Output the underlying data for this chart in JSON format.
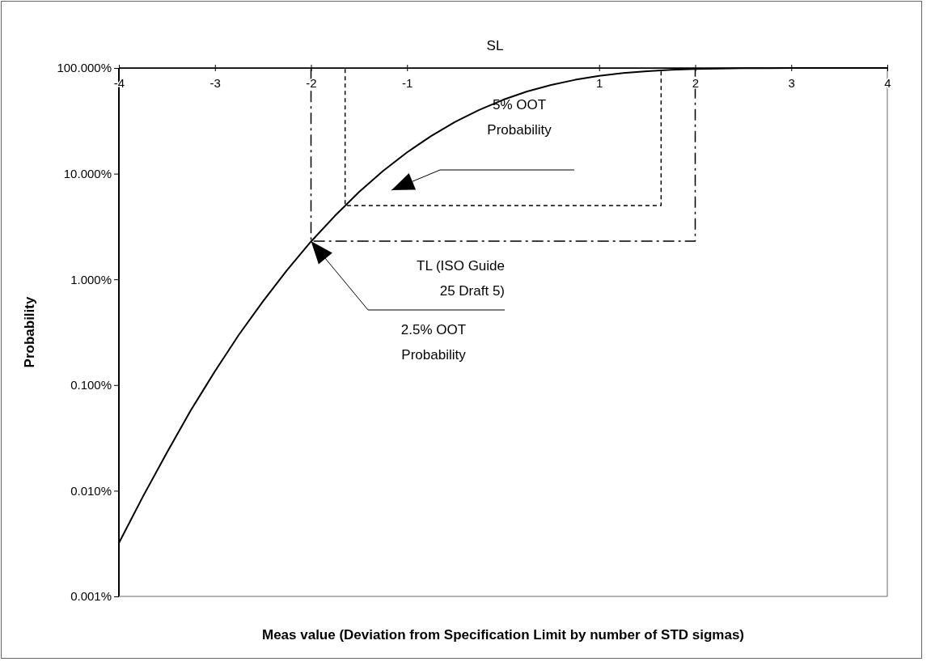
{
  "chart_data": {
    "type": "line",
    "xlabel": "Meas value (Deviation from Specification Limit by number of STD sigmas)",
    "ylabel": "Probability",
    "log": "y",
    "xlim": [
      -4,
      4
    ],
    "xticks": [
      -4,
      -3,
      -2,
      -1,
      1,
      2,
      3,
      4
    ],
    "ylim": [
      0.001,
      100
    ],
    "yticks": [
      {
        "value": 0.001,
        "label": "0.001%"
      },
      {
        "value": 0.01,
        "label": "0.010%"
      },
      {
        "value": 0.1,
        "label": "0.100%"
      },
      {
        "value": 1,
        "label": "1.000%"
      },
      {
        "value": 10,
        "label": "10.000%"
      },
      {
        "value": 100,
        "label": "100.000%"
      }
    ],
    "marker": "none",
    "series": [
      {
        "color": "#000000",
        "line_style": "solid",
        "x": [
          -4,
          -3.75,
          -3.5,
          -3.25,
          -3,
          -2.75,
          -2.5,
          -2.25,
          -2,
          -1.75,
          -1.5,
          -1.25,
          -1,
          -0.75,
          -0.5,
          -0.25,
          0,
          0.25,
          0.5,
          0.75,
          1,
          1.25,
          1.5,
          1.75,
          2,
          2.25,
          2.5,
          2.75,
          3,
          3.25,
          3.5,
          3.75,
          4
        ],
        "values": [
          0.0032,
          0.0088,
          0.023,
          0.058,
          0.135,
          0.3,
          0.62,
          1.22,
          2.28,
          4.0,
          6.7,
          10.6,
          15.9,
          22.7,
          30.9,
          40.1,
          50,
          59.9,
          69.1,
          77.3,
          84.1,
          89.4,
          93.3,
          96,
          97.7,
          98.8,
          99.4,
          99.7,
          99.9,
          99.94,
          99.98,
          100,
          100
        ]
      },
      {
        "color": "#000000",
        "line_style": "dashed",
        "x": [
          -2,
          -2,
          2,
          2
        ],
        "values": [
          98,
          2.3,
          2.3,
          98
        ]
      },
      {
        "color": "#000000",
        "line_style": "dotted",
        "x": [
          -1.645,
          -1.645,
          1.645,
          1.645
        ],
        "values": [
          98,
          5,
          5,
          98
        ]
      }
    ],
    "annotations": [
      "SL",
      "5% OOT Probability",
      {
        "text": "TL (ISO Guide 25 Draft 5)",
        "x": -2,
        "y": 2.3
      },
      "2.5% OOT Probability"
    ]
  }
}
